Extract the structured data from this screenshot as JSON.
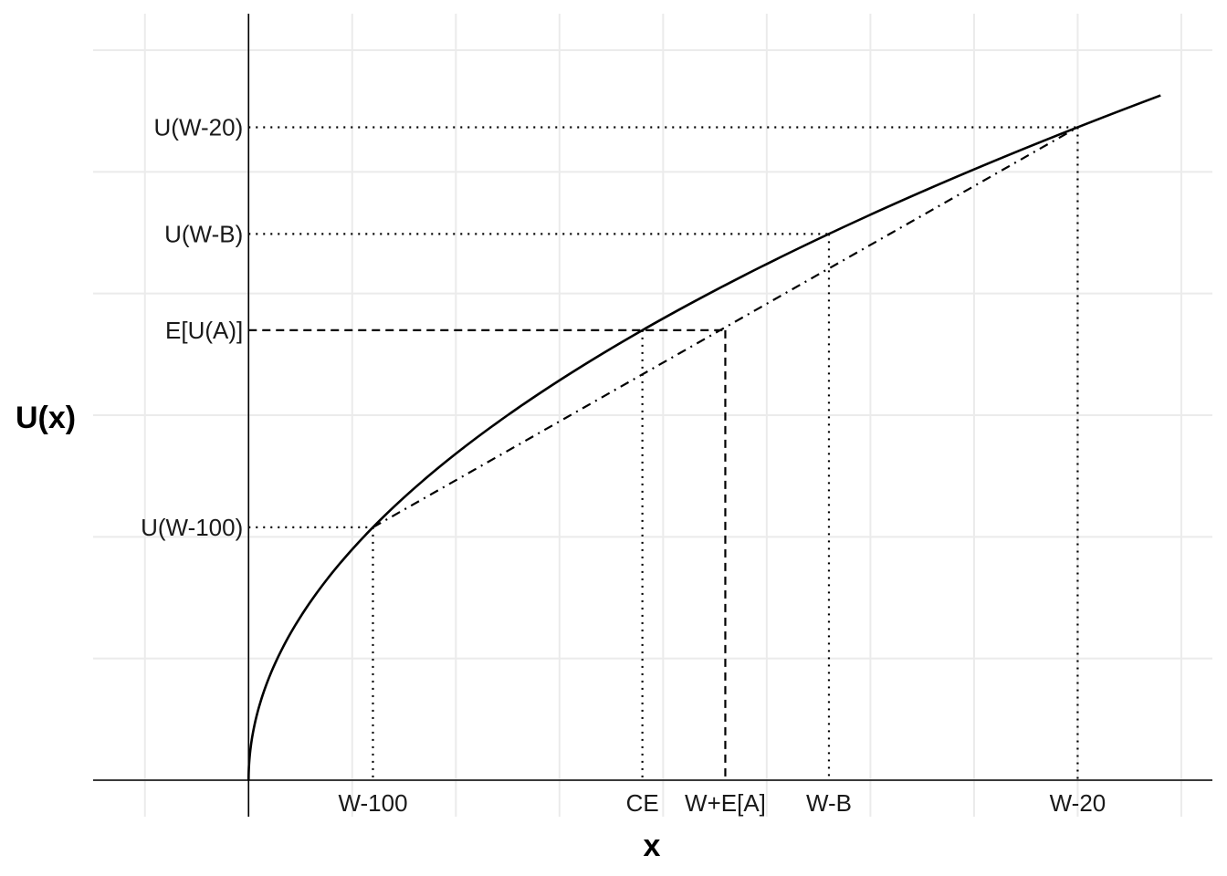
{
  "chart_data": {
    "type": "line",
    "title": "",
    "xlabel": "x",
    "ylabel": "U(x)",
    "xlim": [
      -15,
      93
    ],
    "ylim": [
      -0.5,
      10.5
    ],
    "grid": true,
    "legend": "none",
    "curve": {
      "function": "sqrt",
      "x": [
        0,
        1,
        2,
        5,
        10,
        20,
        30,
        40,
        50,
        60,
        70,
        80,
        88
      ],
      "y": [
        0,
        1,
        1.414,
        2.236,
        3.162,
        4.472,
        5.477,
        6.325,
        7.071,
        7.746,
        8.367,
        8.944,
        9.381
      ]
    },
    "chord": {
      "style": "dash-dot",
      "from": [
        12,
        3.464
      ],
      "to": [
        80,
        8.944
      ]
    },
    "points": {
      "W-100": {
        "x": 12,
        "u": 3.464
      },
      "CE": {
        "x": 38,
        "u": 6.164
      },
      "W+E[A]": {
        "x": 46,
        "u": 6.164
      },
      "W-B": {
        "x": 56,
        "u": 7.483
      },
      "W-20": {
        "x": 80,
        "u": 8.944
      }
    },
    "x_ticks": [
      {
        "label": "W-100",
        "x": 12
      },
      {
        "label": "CE",
        "x": 38
      },
      {
        "label": "W+E[A]",
        "x": 46
      },
      {
        "label": "W-B",
        "x": 56
      },
      {
        "label": "W-20",
        "x": 80
      }
    ],
    "y_ticks": [
      {
        "label": "U(W-100)",
        "y": 3.464
      },
      {
        "label": "E[U(A)]",
        "y": 6.164
      },
      {
        "label": "U(W-B)",
        "y": 7.483
      },
      {
        "label": "U(W-20)",
        "y": 8.944
      }
    ],
    "grid_x": [
      -10,
      0,
      10,
      20,
      30,
      40,
      50,
      60,
      70,
      80,
      90
    ],
    "grid_y": [
      0,
      1.667,
      3.333,
      5,
      6.667,
      8.333,
      10
    ]
  }
}
